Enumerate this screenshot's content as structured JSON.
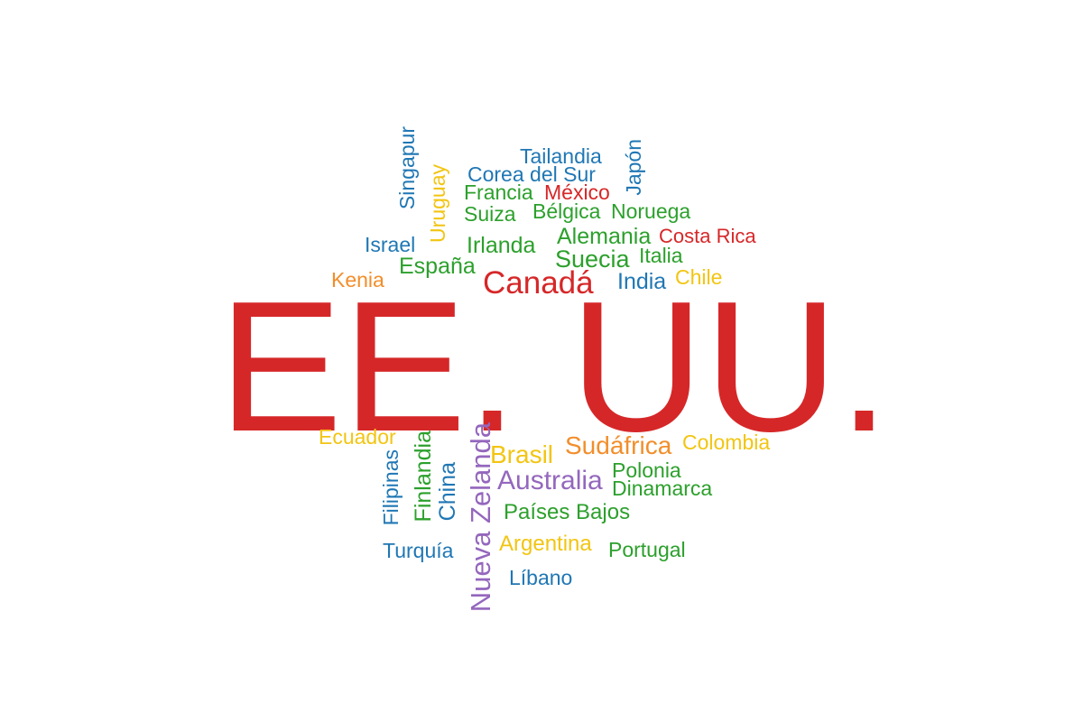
{
  "palette": {
    "red": "#d62728",
    "blue": "#1f77b4",
    "green": "#2ca02c",
    "yellow": "#f2c512",
    "orange": "#f28e2b",
    "purple": "#9467bd"
  },
  "words": [
    {
      "id": "ee-uu",
      "text": "EE. UU.",
      "color": "red"
    },
    {
      "id": "canada",
      "text": "Canadá",
      "color": "red"
    },
    {
      "id": "mexico",
      "text": "México",
      "color": "red"
    },
    {
      "id": "costa-rica",
      "text": "Costa Rica",
      "color": "red"
    },
    {
      "id": "tailandia",
      "text": "Tailandia",
      "color": "blue"
    },
    {
      "id": "corea-del-sur",
      "text": "Corea del Sur",
      "color": "blue"
    },
    {
      "id": "singapur",
      "text": "Singapur",
      "color": "blue"
    },
    {
      "id": "japon",
      "text": "Japón",
      "color": "blue"
    },
    {
      "id": "israel",
      "text": "Israel",
      "color": "blue"
    },
    {
      "id": "india",
      "text": "India",
      "color": "blue"
    },
    {
      "id": "filipinas",
      "text": "Filipinas",
      "color": "blue"
    },
    {
      "id": "china",
      "text": "China",
      "color": "blue"
    },
    {
      "id": "turquia",
      "text": "Turquía",
      "color": "blue"
    },
    {
      "id": "libano",
      "text": "Líbano",
      "color": "blue"
    },
    {
      "id": "francia",
      "text": "Francia",
      "color": "green"
    },
    {
      "id": "suiza",
      "text": "Suiza",
      "color": "green"
    },
    {
      "id": "belgica",
      "text": "Bélgica",
      "color": "green"
    },
    {
      "id": "noruega",
      "text": "Noruega",
      "color": "green"
    },
    {
      "id": "irlanda",
      "text": "Irlanda",
      "color": "green"
    },
    {
      "id": "alemania",
      "text": "Alemania",
      "color": "green"
    },
    {
      "id": "espana",
      "text": "España",
      "color": "green"
    },
    {
      "id": "suecia",
      "text": "Suecia",
      "color": "green"
    },
    {
      "id": "italia",
      "text": "Italia",
      "color": "green"
    },
    {
      "id": "finlandia",
      "text": "Finlandia",
      "color": "green"
    },
    {
      "id": "polonia",
      "text": "Polonia",
      "color": "green"
    },
    {
      "id": "dinamarca",
      "text": "Dinamarca",
      "color": "green"
    },
    {
      "id": "paises-bajos",
      "text": "Países Bajos",
      "color": "green"
    },
    {
      "id": "portugal",
      "text": "Portugal",
      "color": "green"
    },
    {
      "id": "uruguay",
      "text": "Uruguay",
      "color": "yellow"
    },
    {
      "id": "chile",
      "text": "Chile",
      "color": "yellow"
    },
    {
      "id": "ecuador",
      "text": "Ecuador",
      "color": "yellow"
    },
    {
      "id": "brasil",
      "text": "Brasil",
      "color": "yellow"
    },
    {
      "id": "colombia",
      "text": "Colombia",
      "color": "yellow"
    },
    {
      "id": "argentina",
      "text": "Argentina",
      "color": "yellow"
    },
    {
      "id": "kenia",
      "text": "Kenia",
      "color": "orange"
    },
    {
      "id": "sudafrica",
      "text": "Sudáfrica",
      "color": "orange"
    },
    {
      "id": "nueva-zelanda",
      "text": "Nueva Zelanda",
      "color": "purple"
    },
    {
      "id": "australia",
      "text": "Australia",
      "color": "purple"
    }
  ]
}
